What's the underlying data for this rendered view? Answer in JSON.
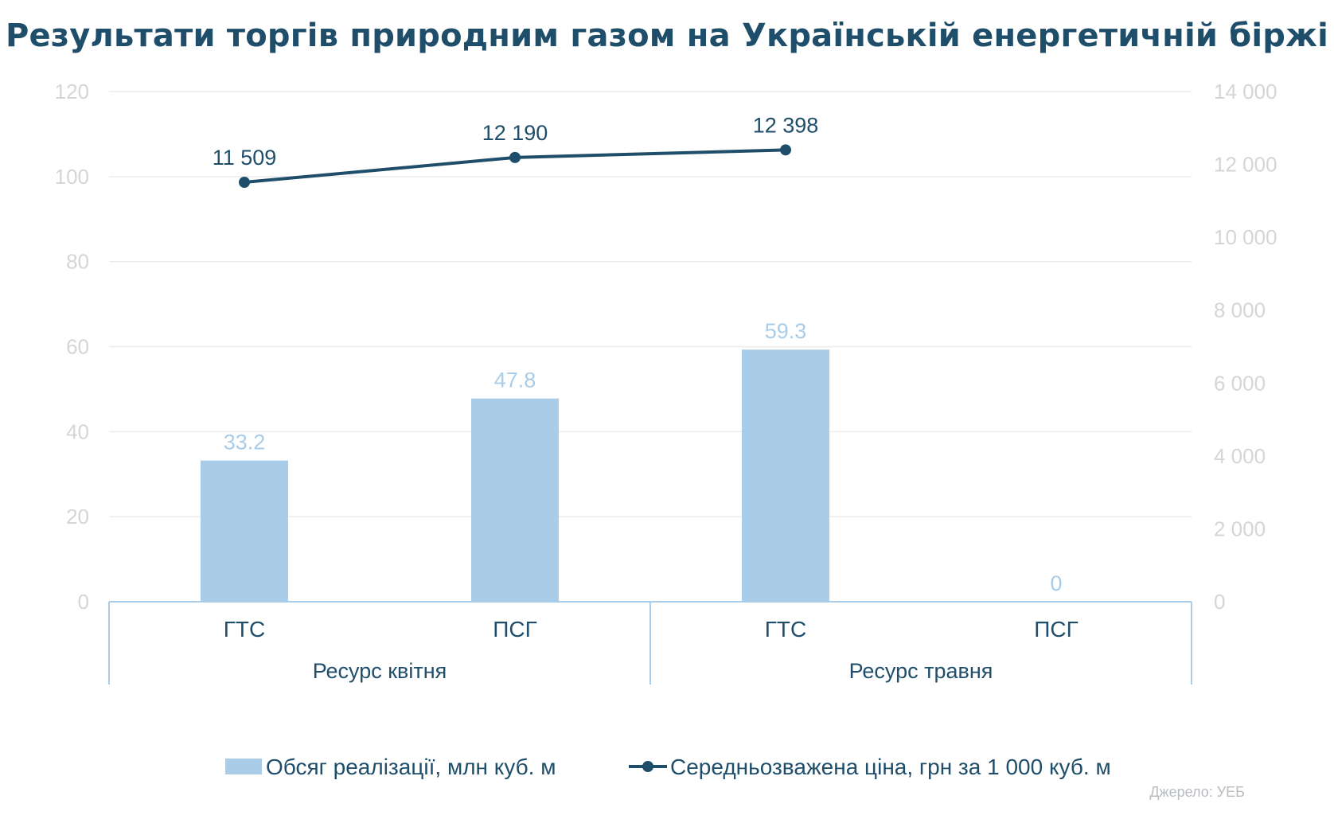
{
  "chart_data": {
    "type": "bar",
    "title": "Результати торгів природним газом на Українській енергетичній біржі",
    "categories": [
      "ГТС",
      "ПСГ",
      "ГТС",
      "ПСГ"
    ],
    "groups": [
      {
        "label": "Ресурс квітня",
        "categories": [
          0,
          1
        ]
      },
      {
        "label": "Ресурс травня",
        "categories": [
          2,
          3
        ]
      }
    ],
    "series": [
      {
        "name": "Обсяг реалізації, млн куб. м",
        "type": "bar",
        "axis": "left",
        "values": [
          33.2,
          47.8,
          59.3,
          0
        ],
        "data_labels": [
          "33.2",
          "47.8",
          "59.3",
          "0"
        ],
        "color": "#a9cde9",
        "label_color": "#a9cde9"
      },
      {
        "name": "Середньозважена ціна, грн за 1 000 куб. м",
        "type": "line",
        "axis": "right",
        "values": [
          11509,
          12190,
          12398,
          null
        ],
        "data_labels": [
          "11 509",
          "12 190",
          "12 398",
          ""
        ],
        "color": "#1f4e6b",
        "label_color": "#1f4e6b"
      }
    ],
    "y_left": {
      "ylim": [
        0,
        120
      ],
      "ticks": [
        0,
        20,
        40,
        60,
        80,
        100,
        120
      ],
      "tick_labels": [
        "0",
        "20",
        "40",
        "60",
        "80",
        "100",
        "120"
      ]
    },
    "y_right": {
      "ylim": [
        0,
        14000
      ],
      "ticks": [
        0,
        2000,
        4000,
        6000,
        8000,
        10000,
        12000,
        14000
      ],
      "tick_labels": [
        "0",
        "2 000",
        "4 000",
        "6 000",
        "8 000",
        "10 000",
        "12 000",
        "14 000"
      ]
    },
    "grid": true,
    "legend_position": "bottom",
    "source": "Джерело: УЕБ",
    "colors": {
      "grid": "#ececec",
      "axis": "#a9cde9",
      "tick_text": "#d3d5d7",
      "text": "#1f4e6b",
      "source": "#b8bcc0"
    }
  }
}
